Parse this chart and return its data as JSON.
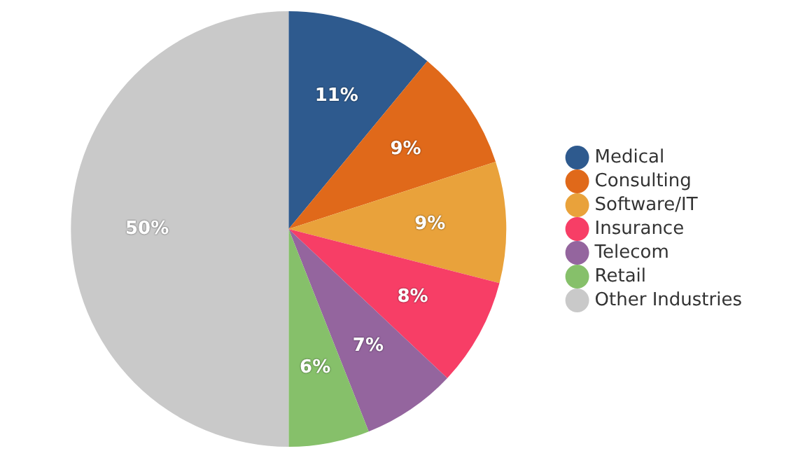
{
  "chart_data": {
    "type": "pie",
    "categories": [
      "Medical",
      "Consulting",
      "Software/IT",
      "Insurance",
      "Telecom",
      "Retail",
      "Other Industries"
    ],
    "values": [
      11,
      9,
      9,
      8,
      7,
      6,
      50
    ],
    "value_labels": [
      "11%",
      "9%",
      "9%",
      "8%",
      "7%",
      "6%",
      "50%"
    ],
    "colors": [
      "#2e5a8e",
      "#e0691a",
      "#e9a23b",
      "#f73e66",
      "#94659e",
      "#86c06a",
      "#c9c9c9"
    ],
    "legend": "right"
  }
}
